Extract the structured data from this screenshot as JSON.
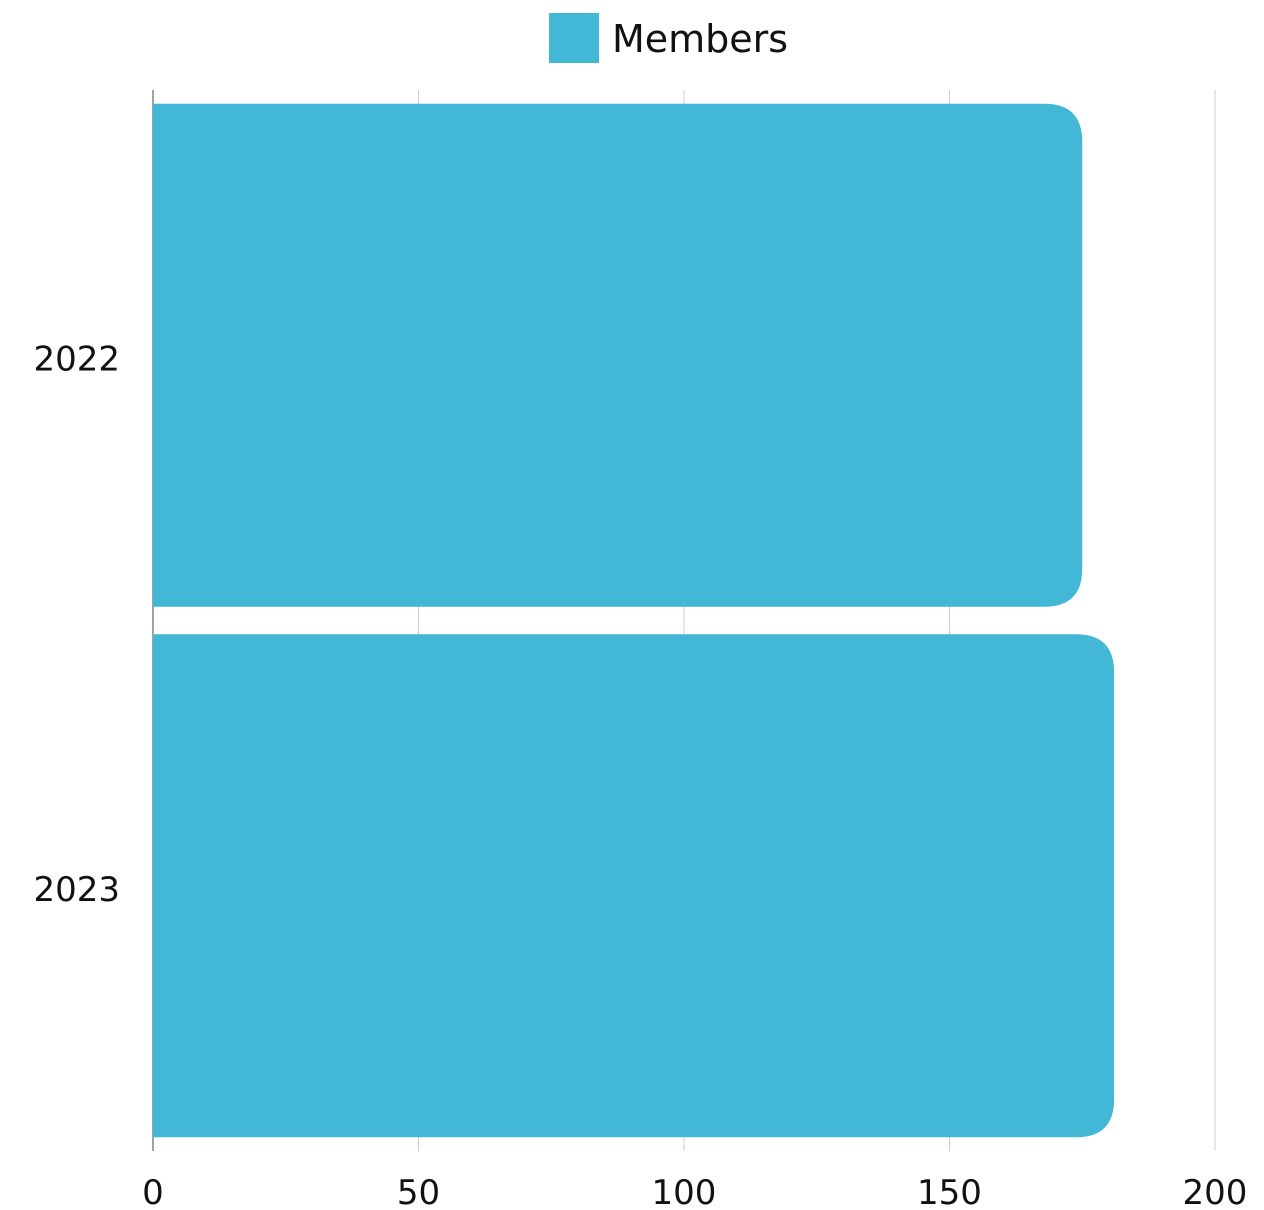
{
  "chart_data": {
    "type": "bar",
    "orientation": "horizontal",
    "categories": [
      "2022",
      "2023"
    ],
    "series": [
      {
        "name": "Members",
        "values": [
          175,
          181
        ],
        "color": "#42b7d6"
      }
    ],
    "xlim": [
      0,
      200
    ],
    "xticks": [
      "0",
      "50",
      "100",
      "150",
      "200"
    ],
    "grid": true,
    "legend_position": "top-center",
    "title": "",
    "xlabel": "",
    "ylabel": ""
  }
}
